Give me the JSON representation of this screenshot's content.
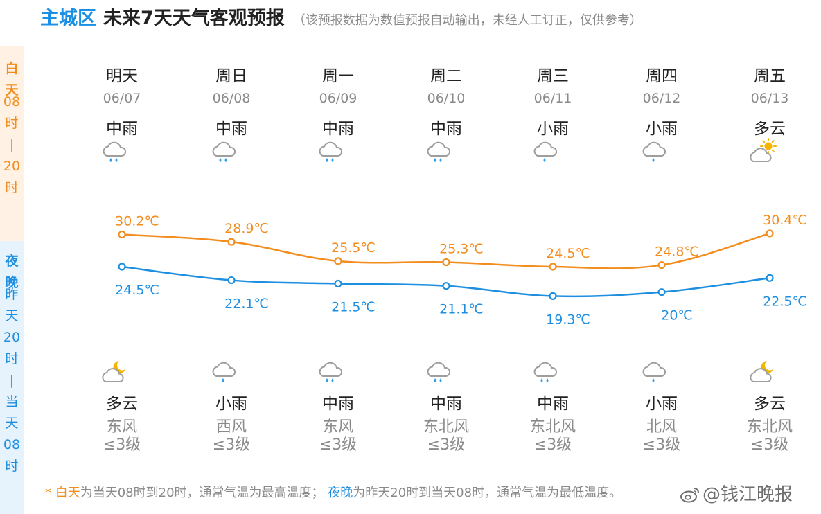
{
  "header": {
    "district": "主城区",
    "title": "未来7天天气客观预报",
    "subtitle": "（该预报数据为数值预报自动输出，未经人工订正，仅供参考）"
  },
  "side": {
    "day": {
      "head": [
        "白",
        "天"
      ],
      "range": [
        "08",
        "时",
        "|",
        "20",
        "时"
      ]
    },
    "night": {
      "head": [
        "夜",
        "晚"
      ],
      "range": [
        "昨",
        "天",
        "20",
        "时",
        "|",
        "当",
        "天",
        "08",
        "时"
      ]
    }
  },
  "colors": {
    "day": "#f28d1e",
    "night": "#1e8fe0"
  },
  "days": [
    {
      "name": "明天",
      "date": "06/07",
      "day_weather": "中雨",
      "day_icon": "moderate-rain-icon",
      "night_weather": "多云",
      "night_icon": "cloudy-night-icon",
      "wind_dir": "东风",
      "wind_level": "≤3级"
    },
    {
      "name": "周日",
      "date": "06/08",
      "day_weather": "中雨",
      "day_icon": "moderate-rain-icon",
      "night_weather": "小雨",
      "night_icon": "light-rain-icon",
      "wind_dir": "西风",
      "wind_level": "≤3级"
    },
    {
      "name": "周一",
      "date": "06/09",
      "day_weather": "中雨",
      "day_icon": "moderate-rain-icon",
      "night_weather": "中雨",
      "night_icon": "moderate-rain-icon",
      "wind_dir": "东风",
      "wind_level": "≤3级"
    },
    {
      "name": "周二",
      "date": "06/10",
      "day_weather": "中雨",
      "day_icon": "moderate-rain-icon",
      "night_weather": "中雨",
      "night_icon": "moderate-rain-icon",
      "wind_dir": "东北风",
      "wind_level": "≤3级"
    },
    {
      "name": "周三",
      "date": "06/11",
      "day_weather": "小雨",
      "day_icon": "light-rain-icon",
      "night_weather": "中雨",
      "night_icon": "moderate-rain-icon",
      "wind_dir": "东北风",
      "wind_level": "≤3级"
    },
    {
      "name": "周四",
      "date": "06/12",
      "day_weather": "小雨",
      "day_icon": "light-rain-icon",
      "night_weather": "小雨",
      "night_icon": "light-rain-icon",
      "wind_dir": "北风",
      "wind_level": "≤3级"
    },
    {
      "name": "周五",
      "date": "06/13",
      "day_weather": "多云",
      "day_icon": "cloudy-day-icon",
      "night_weather": "多云",
      "night_icon": "cloudy-night-icon",
      "wind_dir": "东北风",
      "wind_level": "≤3级"
    }
  ],
  "chart_data": {
    "type": "line",
    "categories": [
      "明天",
      "周日",
      "周一",
      "周二",
      "周三",
      "周四",
      "周五"
    ],
    "unit": "℃",
    "series": [
      {
        "name": "白天",
        "values": [
          30.2,
          28.9,
          25.5,
          25.3,
          24.5,
          24.8,
          30.4
        ]
      },
      {
        "name": "夜晚",
        "values": [
          24.5,
          22.1,
          21.5,
          21.1,
          19.3,
          20,
          22.5
        ]
      }
    ],
    "labels": {
      "day": [
        "30.2℃",
        "28.9℃",
        "25.5℃",
        "25.3℃",
        "24.5℃",
        "24.8℃",
        "30.4℃"
      ],
      "night": [
        "24.5℃",
        "22.1℃",
        "21.5℃",
        "21.1℃",
        "19.3℃",
        "20℃",
        "22.5℃"
      ]
    },
    "grid": false
  },
  "footnote": {
    "star": "* ",
    "day_word": "白天",
    "day_text": "为当天08时到20时，通常气温为最高温度；",
    "night_word": "夜晚",
    "night_text": "为昨天20时到当天08时，通常气温为最低温度。"
  },
  "watermark": "@钱江晚报"
}
